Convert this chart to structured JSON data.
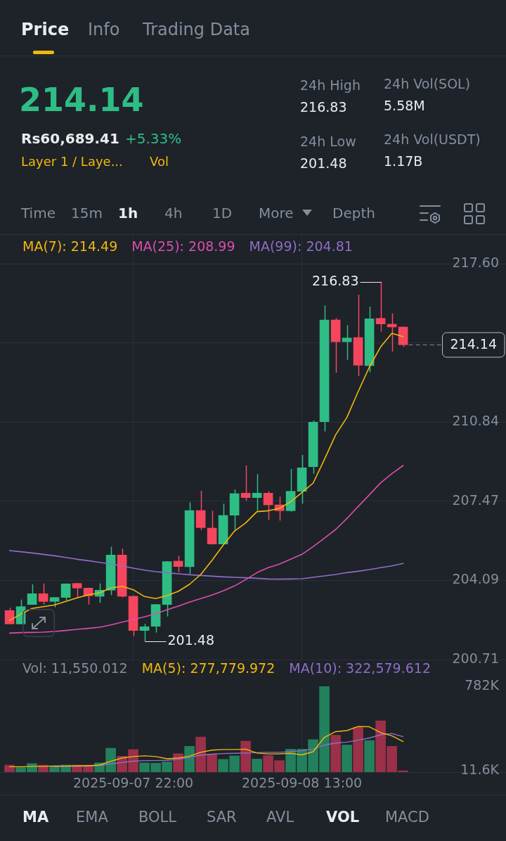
{
  "chart_data": [
    {
      "type": "candlestick",
      "x": [
        "2025-09-07T11:00",
        "2025-09-07T12:00",
        "2025-09-07T13:00",
        "2025-09-07T14:00",
        "2025-09-07T15:00",
        "2025-09-07T16:00",
        "2025-09-07T17:00",
        "2025-09-07T18:00",
        "2025-09-07T19:00",
        "2025-09-07T20:00",
        "2025-09-07T21:00",
        "2025-09-07T22:00",
        "2025-09-07T23:00",
        "2025-09-08T00:00",
        "2025-09-08T01:00",
        "2025-09-08T02:00",
        "2025-09-08T03:00",
        "2025-09-08T04:00",
        "2025-09-08T05:00",
        "2025-09-08T06:00",
        "2025-09-08T07:00",
        "2025-09-08T08:00",
        "2025-09-08T09:00",
        "2025-09-08T10:00",
        "2025-09-08T11:00",
        "2025-09-08T12:00",
        "2025-09-08T13:00",
        "2025-09-08T14:00",
        "2025-09-08T15:00",
        "2025-09-08T16:00",
        "2025-09-08T17:00",
        "2025-09-08T18:00",
        "2025-09-08T19:00",
        "2025-09-08T20:00",
        "2025-09-08T21:00",
        "2025-09-08T22:00"
      ],
      "xlim": [
        "2025-09-07T10:09",
        "2025-09-09T07:09"
      ],
      "xticks": [
        {
          "value": "2025-09-07T22:00",
          "label": null
        },
        {
          "value": "2025-09-08T13:00",
          "label": null
        }
      ],
      "ylim": [
        200.71,
        218.86
      ],
      "yticks": [
        {
          "value": 217.6,
          "label": "217.60"
        },
        {
          "value": 214.22,
          "label": null
        },
        210.84,
        207.47,
        204.09,
        200.71
      ],
      "tick_labels": "y",
      "grid": true,
      "legend": "top left",
      "series": [
        {
          "colors": [
            "#f6465d",
            "#2ebd85",
            "#2ebd85",
            "#f6465d",
            "#2ebd85",
            "#2ebd85",
            "#f6465d",
            "#f6465d",
            "#2ebd85",
            "#2ebd85",
            "#f6465d",
            "#f6465d",
            "#2ebd85",
            "#2ebd85",
            "#2ebd85",
            "#f6465d",
            "#2ebd85",
            "#f6465d",
            "#f6465d",
            "#2ebd85",
            "#2ebd85",
            "#f6465d",
            "#2ebd85",
            "#f6465d",
            "#f6465d",
            "#2ebd85",
            "#2ebd85",
            "#2ebd85",
            "#2ebd85",
            "#f6465d",
            "#2ebd85",
            "#f6465d",
            "#2ebd85",
            "#f6465d",
            "#f6465d",
            "#f6465d"
          ],
          "ohlc": [
            [
              202.8,
              202.92,
              202.23,
              202.23
            ],
            [
              202.23,
              203.27,
              202.23,
              202.97
            ],
            [
              203.06,
              203.92,
              203.06,
              203.52
            ],
            [
              203.52,
              203.96,
              203.06,
              203.19
            ],
            [
              203.19,
              203.36,
              202.94,
              203.36
            ],
            [
              203.36,
              203.96,
              203.24,
              203.94
            ],
            [
              203.96,
              203.98,
              203.34,
              203.76
            ],
            [
              203.76,
              203.78,
              203.06,
              203.43
            ],
            [
              203.41,
              203.96,
              203.13,
              203.67
            ],
            [
              203.67,
              205.52,
              203.46,
              205.17
            ],
            [
              205.17,
              205.44,
              203.36,
              203.41
            ],
            [
              203.41,
              203.45,
              201.71,
              201.95
            ],
            [
              201.95,
              202.23,
              201.48,
              202.11
            ],
            [
              202.13,
              203.08,
              201.86,
              203.06
            ],
            [
              203.06,
              204.91,
              202.55,
              204.89
            ],
            [
              204.91,
              205.14,
              204.44,
              204.68
            ],
            [
              204.67,
              207.42,
              204.36,
              207.07
            ],
            [
              207.07,
              207.92,
              206.24,
              206.34
            ],
            [
              206.32,
              207.06,
              205.62,
              205.64
            ],
            [
              205.64,
              207.36,
              205.62,
              206.86
            ],
            [
              206.87,
              207.96,
              206.24,
              207.79
            ],
            [
              207.81,
              208.99,
              207.49,
              207.62
            ],
            [
              207.62,
              208.62,
              207.06,
              207.81
            ],
            [
              207.81,
              207.89,
              206.67,
              207.31
            ],
            [
              207.31,
              207.66,
              206.64,
              207.06
            ],
            [
              207.06,
              208.84,
              207.02,
              207.89
            ],
            [
              207.89,
              209.44,
              207.36,
              208.89
            ],
            [
              208.94,
              210.91,
              208.64,
              210.84
            ],
            [
              210.86,
              215.82,
              210.44,
              215.2
            ],
            [
              215.2,
              215.28,
              212.95,
              214.27
            ],
            [
              214.27,
              214.98,
              213.5,
              214.43
            ],
            [
              214.45,
              216.28,
              212.8,
              213.27
            ],
            [
              213.25,
              215.77,
              212.97,
              215.25
            ],
            [
              215.27,
              216.83,
              214.7,
              215.03
            ],
            [
              215.02,
              215.48,
              213.85,
              214.9
            ],
            [
              214.9,
              214.9,
              214.05,
              214.14
            ]
          ]
        },
        {
          "type": "line",
          "name": "MA(7): 214.49",
          "color": "#f0b90b",
          "values": [
            202.38,
            202.65,
            202.89,
            202.97,
            203.04,
            203.19,
            203.34,
            203.47,
            203.56,
            203.76,
            203.84,
            203.69,
            203.4,
            203.31,
            203.44,
            203.62,
            203.92,
            204.34,
            204.94,
            205.59,
            206.19,
            206.54,
            207.02,
            207.06,
            207.16,
            207.44,
            207.84,
            208.24,
            209.25,
            210.3,
            211.04,
            212.14,
            213.19,
            214.05,
            214.63,
            214.49
          ]
        },
        {
          "type": "line",
          "name": "MA(25): 208.99",
          "color": "#d94fae",
          "values": [
            201.84,
            201.86,
            201.87,
            201.88,
            201.91,
            201.95,
            202.0,
            202.04,
            202.09,
            202.19,
            202.31,
            202.42,
            202.53,
            202.67,
            202.83,
            202.99,
            203.16,
            203.31,
            203.46,
            203.64,
            203.85,
            204.12,
            204.42,
            204.63,
            204.78,
            204.99,
            205.2,
            205.53,
            205.89,
            206.26,
            206.73,
            207.24,
            207.74,
            208.25,
            208.64,
            208.99
          ]
        },
        {
          "type": "line",
          "name": "MA(99): 204.81",
          "color": "#8f6ec9",
          "values": [
            205.36,
            205.31,
            205.26,
            205.2,
            205.14,
            205.07,
            204.99,
            204.93,
            204.86,
            204.78,
            204.71,
            204.61,
            204.53,
            204.46,
            204.42,
            204.37,
            204.33,
            204.3,
            204.27,
            204.24,
            204.22,
            204.2,
            204.18,
            204.15,
            204.14,
            204.15,
            204.16,
            204.22,
            204.28,
            204.34,
            204.42,
            204.48,
            204.55,
            204.63,
            204.71,
            204.81
          ]
        }
      ],
      "ref_lines": [
        {
          "axis": "y",
          "value": 214.14,
          "label": "214.14",
          "line_style": "dashed",
          "color": "#848e9c"
        }
      ],
      "annotations": [
        "Price",
        "Info",
        "Trading Data",
        "214.14",
        "Rs60,689.41",
        "+5.33%",
        "Layer 1 / Laye...",
        "Vol",
        "24h High",
        "216.83",
        "24h Low",
        "201.48",
        "24h Vol(SOL)",
        "5.58M",
        "24h Vol(USDT)",
        "1.17B",
        "Time",
        "15m",
        "1h",
        "4h",
        "1D",
        "More",
        "Depth",
        {
          "text": "216.83",
          "x": "2025-09-08T20:00",
          "y": 216.83
        },
        {
          "text": "201.48",
          "x": "2025-09-07T23:00",
          "y": 201.48
        }
      ]
    },
    {
      "type": "bar",
      "x": [
        "2025-09-07T11:00",
        "2025-09-07T12:00",
        "2025-09-07T13:00",
        "2025-09-07T14:00",
        "2025-09-07T15:00",
        "2025-09-07T16:00",
        "2025-09-07T17:00",
        "2025-09-07T18:00",
        "2025-09-07T19:00",
        "2025-09-07T20:00",
        "2025-09-07T21:00",
        "2025-09-07T22:00",
        "2025-09-07T23:00",
        "2025-09-08T00:00",
        "2025-09-08T01:00",
        "2025-09-08T02:00",
        "2025-09-08T03:00",
        "2025-09-08T04:00",
        "2025-09-08T05:00",
        "2025-09-08T06:00",
        "2025-09-08T07:00",
        "2025-09-08T08:00",
        "2025-09-08T09:00",
        "2025-09-08T10:00",
        "2025-09-08T11:00",
        "2025-09-08T12:00",
        "2025-09-08T13:00",
        "2025-09-08T14:00",
        "2025-09-08T15:00",
        "2025-09-08T16:00",
        "2025-09-08T17:00",
        "2025-09-08T18:00",
        "2025-09-08T19:00",
        "2025-09-08T20:00",
        "2025-09-08T21:00",
        "2025-09-08T22:00"
      ],
      "xlim": [
        "2025-09-07T10:09",
        "2025-09-09T07:09"
      ],
      "xticks": [
        {
          "value": "2025-09-07T22:00",
          "label": "2025-09-07 22:00"
        },
        {
          "value": "2025-09-08T13:00",
          "label": "2025-09-08 13:00"
        }
      ],
      "ylim": [
        0,
        782000
      ],
      "yticks": [
        {
          "value": 11600,
          "label": "11.6K"
        },
        {
          "value": 782000,
          "label": "782K"
        }
      ],
      "grid": "x",
      "legend": "top",
      "series": [
        {
          "colors": [
            "#9b3049",
            "#23805d",
            "#23805d",
            "#9b3049",
            "#23805d",
            "#23805d",
            "#9b3049",
            "#9b3049",
            "#23805d",
            "#23805d",
            "#9b3049",
            "#9b3049",
            "#23805d",
            "#23805d",
            "#23805d",
            "#9b3049",
            "#23805d",
            "#9b3049",
            "#9b3049",
            "#23805d",
            "#23805d",
            "#9b3049",
            "#23805d",
            "#9b3049",
            "#9b3049",
            "#23805d",
            "#23805d",
            "#23805d",
            "#23805d",
            "#9b3049",
            "#23805d",
            "#9b3049",
            "#23805d",
            "#9b3049",
            "#9b3049",
            "#9b3049"
          ],
          "values": [
            64000,
            41000,
            78000,
            64000,
            58000,
            64000,
            64000,
            64000,
            84000,
            218000,
            145000,
            206000,
            84000,
            81000,
            93000,
            168000,
            235000,
            320000,
            163000,
            116000,
            148000,
            282000,
            119000,
            151000,
            105000,
            209000,
            209000,
            296000,
            782000,
            337000,
            247000,
            410000,
            288000,
            468000,
            235000,
            12000
          ]
        },
        {
          "type": "line",
          "name": "MA(5): 277,779.972",
          "color": "#f0b90b",
          "values": [
            49000,
            49000,
            52000,
            52000,
            55000,
            55000,
            58000,
            58000,
            64000,
            99000,
            128000,
            142000,
            148000,
            142000,
            122000,
            128000,
            145000,
            180000,
            200000,
            206000,
            206000,
            209000,
            174000,
            166000,
            166000,
            171000,
            157000,
            186000,
            317000,
            369000,
            378000,
            416000,
            413000,
            360000,
            331000,
            278000
          ]
        },
        {
          "type": "line",
          "name": "MA(10): 322,579.612",
          "color": "#8f6ec9",
          "values": [
            null,
            null,
            null,
            null,
            49000,
            52000,
            52000,
            55000,
            61000,
            75000,
            87000,
            99000,
            105000,
            105000,
            107000,
            116000,
            134000,
            154000,
            163000,
            169000,
            171000,
            174000,
            177000,
            180000,
            180000,
            186000,
            195000,
            209000,
            247000,
            264000,
            273000,
            291000,
            311000,
            340000,
            352000,
            323000
          ]
        }
      ],
      "annotations": [
        "Vol: 11,550.012",
        "MA",
        "EMA",
        "BOLL",
        "SAR",
        "AVL",
        "VOL",
        "MACD"
      ]
    }
  ]
}
